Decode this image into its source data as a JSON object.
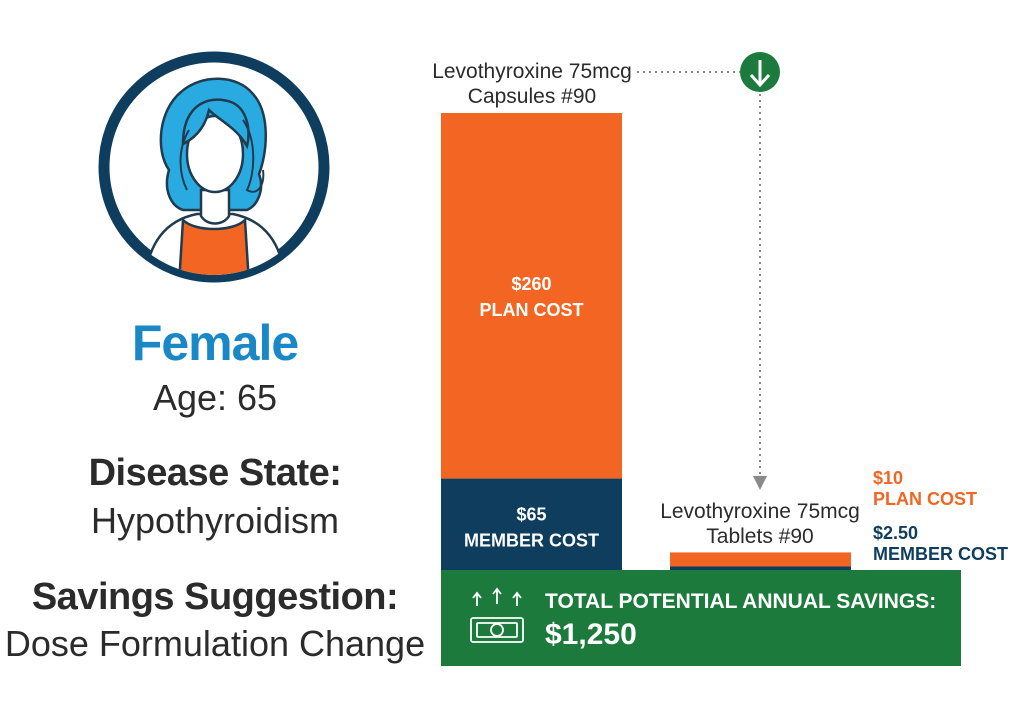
{
  "profile": {
    "gender": "Female",
    "age": "Age: 65",
    "disease_state_heading": "Disease State:",
    "disease_state": "Hypothyroidism",
    "suggestion_heading": "Savings Suggestion:",
    "suggestion": "Dose Formulation Change",
    "avatar_icon": "woman-avatar-icon"
  },
  "colors": {
    "plan": "#f26522",
    "member": "#0e3d5e",
    "savings": "#1c7a3c",
    "accent_blue": "#1a87c7",
    "text": "#2b2b2b"
  },
  "chart_data": {
    "type": "bar",
    "stacked": true,
    "categories": [
      "Levothyroxine 75mcg Capsules #90",
      "Levothyroxine 75mcg Tablets #90"
    ],
    "category_lines": [
      [
        "Levothyroxine 75mcg",
        "Capsules #90"
      ],
      [
        "Levothyroxine 75mcg",
        "Tablets #90"
      ]
    ],
    "series": [
      {
        "key": "member",
        "values": [
          65,
          2.5
        ],
        "value_labels": [
          "$65",
          "$2.50"
        ],
        "name_label": "MEMBER COST"
      },
      {
        "key": "plan",
        "values": [
          260,
          10
        ],
        "value_labels": [
          "$260",
          "$10"
        ],
        "name_label": "PLAN COST"
      }
    ],
    "savings": {
      "label": "TOTAL POTENTIAL ANNUAL SAVINGS:",
      "value": "$1,250",
      "icon": "money-savings-icon"
    },
    "switch_icon": "down-arrow-icon"
  }
}
